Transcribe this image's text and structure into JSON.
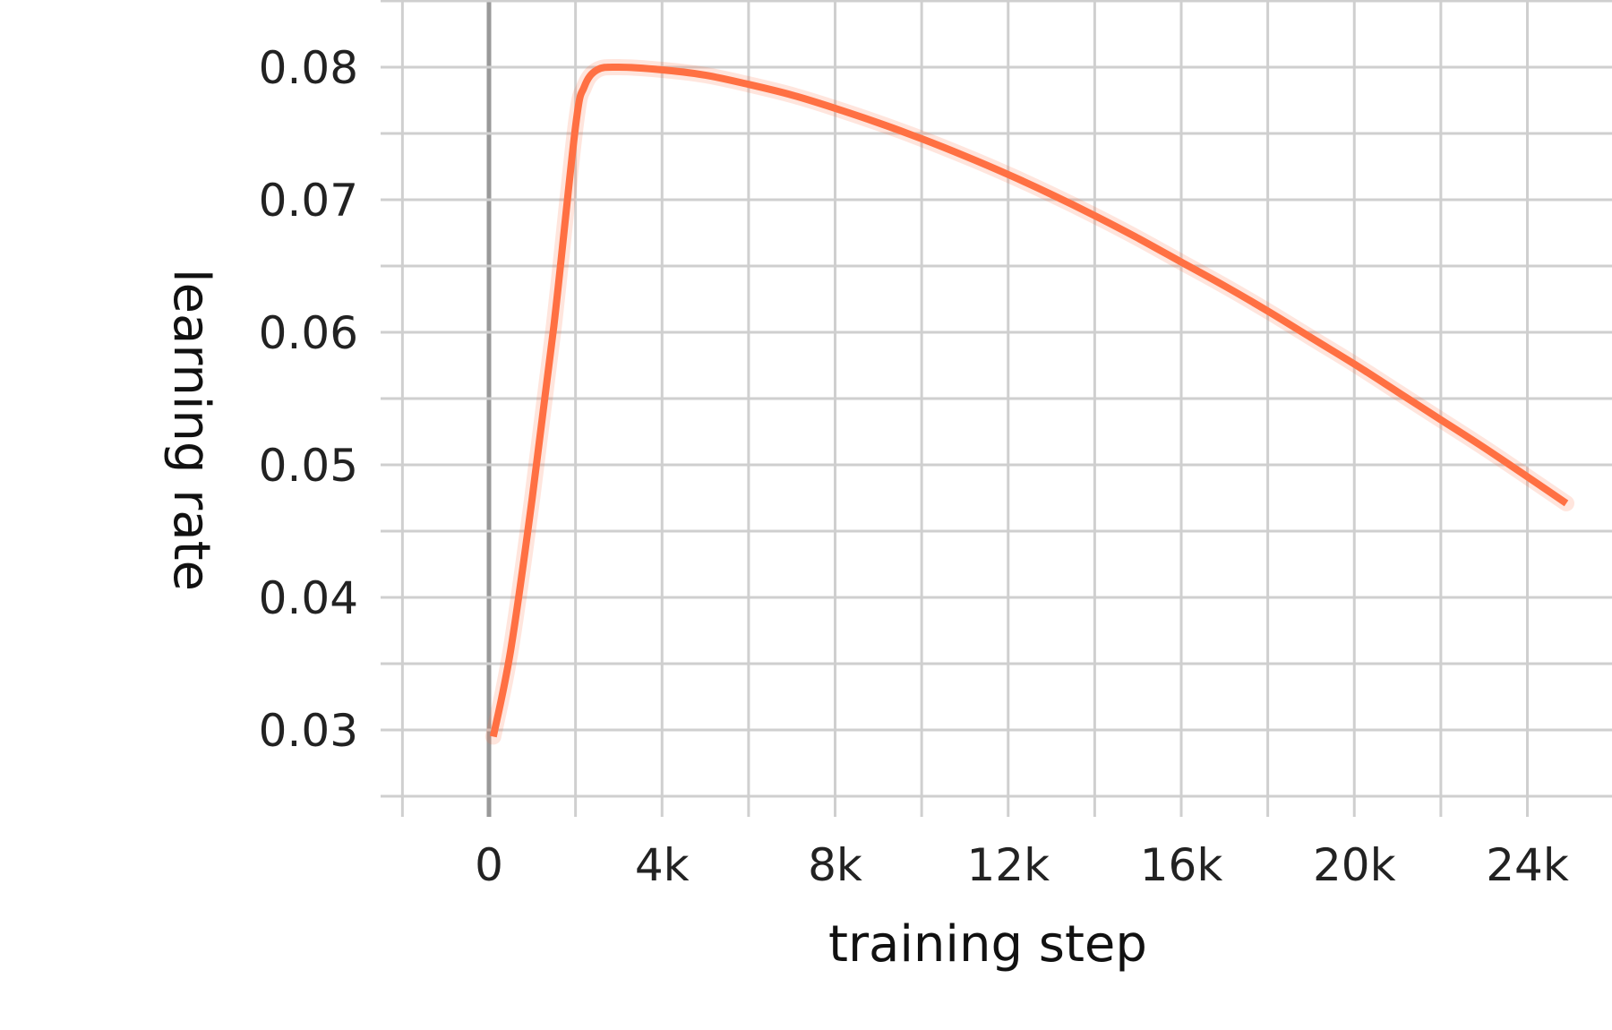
{
  "chart_data": {
    "type": "line",
    "title": "",
    "xlabel": "training step",
    "ylabel": "learning rate",
    "xlim": [
      -1000,
      26000
    ],
    "ylim": [
      0.025,
      0.085
    ],
    "x_ticks": [
      0,
      4000,
      8000,
      12000,
      16000,
      20000,
      24000
    ],
    "x_tick_labels": [
      "0",
      "4k",
      "8k",
      "12k",
      "16k",
      "20k",
      "24k"
    ],
    "y_ticks": [
      0.03,
      0.04,
      0.05,
      0.06,
      0.07,
      0.08
    ],
    "y_tick_labels": [
      "0.03",
      "0.04",
      "0.05",
      "0.06",
      "0.07",
      "0.08"
    ],
    "grid": true,
    "legend": "none",
    "series": [
      {
        "color": "#ff7043",
        "x": [
          100,
          500,
          1000,
          1500,
          2000,
          2200,
          2500,
          3000,
          4000,
          5000,
          6000,
          7000,
          8000,
          9000,
          10000,
          11000,
          12000,
          13000,
          14000,
          15000,
          16000,
          17000,
          18000,
          19000,
          20000,
          21000,
          22000,
          23000,
          24000,
          24900
        ],
        "y": [
          0.0295,
          0.036,
          0.0475,
          0.0605,
          0.0755,
          0.0785,
          0.0798,
          0.08,
          0.0798,
          0.0794,
          0.0787,
          0.0779,
          0.0769,
          0.0758,
          0.0746,
          0.0733,
          0.0719,
          0.0704,
          0.0688,
          0.0671,
          0.0653,
          0.0635,
          0.0616,
          0.0596,
          0.0576,
          0.0555,
          0.0534,
          0.0513,
          0.0491,
          0.0471
        ]
      }
    ]
  }
}
